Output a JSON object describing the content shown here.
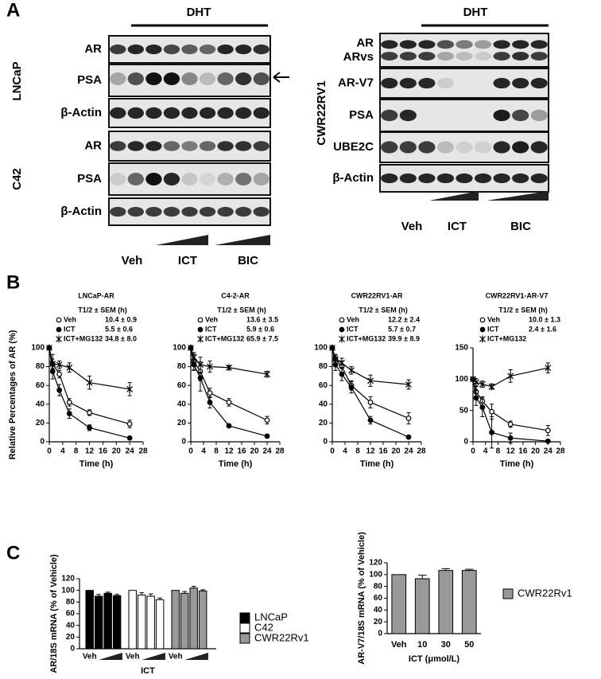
{
  "figure": {
    "panels": [
      "A",
      "B",
      "C"
    ]
  },
  "blots": [
    {
      "treatment": "DHT",
      "cell_lines": [
        "LNCaP",
        "C42"
      ],
      "rows": [
        "AR",
        "PSA",
        "β-Actin",
        "AR",
        "PSA",
        "β-Actin"
      ],
      "lanes": [
        "Veh",
        "ICT",
        "BIC"
      ]
    },
    {
      "treatment": "DHT",
      "cell_lines": [
        "CWR22RV1"
      ],
      "rows": [
        "AR",
        "ARvs",
        "AR-V7",
        "PSA",
        "UBE2C",
        "β-Actin"
      ],
      "lanes": [
        "Veh",
        "ICT",
        "BIC"
      ]
    }
  ],
  "chart_data": [
    {
      "type": "line",
      "title": "LNCaP-AR",
      "legend_header": "T1/2 ± SEM (h)",
      "ylabel": "Relative Percentages of AR (%)",
      "xlabel": "Time (h)",
      "x": [
        0,
        1,
        3,
        6,
        12,
        24
      ],
      "xlim": [
        0,
        28
      ],
      "xticks": [
        0,
        4,
        8,
        12,
        16,
        20,
        24,
        28
      ],
      "ylim": [
        0,
        100
      ],
      "yticks": [
        0,
        20,
        40,
        60,
        80,
        100
      ],
      "series": [
        {
          "name": "Veh",
          "half_life": "10.4 ± 0.9",
          "marker": "open-circle",
          "color": "#000000",
          "values": [
            100,
            83,
            72,
            42,
            31,
            19
          ],
          "errors": [
            0,
            10,
            4,
            4,
            3,
            4
          ]
        },
        {
          "name": "ICT",
          "half_life": "5.5 ± 0.6",
          "marker": "filled-circle",
          "color": "#000000",
          "values": [
            100,
            75,
            55,
            30,
            15,
            4
          ],
          "errors": [
            0,
            8,
            6,
            5,
            3,
            1
          ]
        },
        {
          "name": "ICT+MG132",
          "half_life": "34.8 ± 8.0",
          "marker": "asterisk",
          "color": "#000000",
          "values": [
            100,
            83,
            82,
            79,
            63,
            56
          ],
          "errors": [
            0,
            5,
            4,
            5,
            7,
            7
          ]
        }
      ]
    },
    {
      "type": "line",
      "title": "C4-2-AR",
      "legend_header": "T1/2 ± SEM (h)",
      "xlabel": "Time (h)",
      "x": [
        0,
        1,
        3,
        6,
        12,
        24
      ],
      "xlim": [
        0,
        28
      ],
      "xticks": [
        0,
        4,
        8,
        12,
        16,
        20,
        24,
        28
      ],
      "ylim": [
        0,
        100
      ],
      "yticks": [
        0,
        20,
        40,
        60,
        80,
        100
      ],
      "series": [
        {
          "name": "Veh",
          "half_life": "13.6 ± 3.5",
          "marker": "open-circle",
          "color": "#000000",
          "values": [
            100,
            85,
            75,
            52,
            42,
            23
          ],
          "errors": [
            0,
            8,
            10,
            5,
            4,
            4
          ]
        },
        {
          "name": "ICT",
          "half_life": "5.9 ± 0.6",
          "marker": "filled-circle",
          "color": "#000000",
          "values": [
            100,
            82,
            68,
            42,
            17,
            6
          ],
          "errors": [
            0,
            6,
            14,
            6,
            1,
            1
          ]
        },
        {
          "name": "ICT+MG132",
          "half_life": "65.9 ± 7.5",
          "marker": "asterisk",
          "color": "#000000",
          "values": [
            100,
            90,
            82,
            80,
            79,
            72
          ],
          "errors": [
            0,
            5,
            8,
            6,
            2,
            3
          ]
        }
      ]
    },
    {
      "type": "line",
      "title": "CWR22RV1-AR",
      "legend_header": "T1/2 ± SEM (h)",
      "xlabel": "Time (h)",
      "x": [
        0,
        1,
        3,
        6,
        12,
        24
      ],
      "xlim": [
        0,
        28
      ],
      "xticks": [
        0,
        4,
        8,
        12,
        16,
        20,
        24,
        28
      ],
      "ylim": [
        0,
        100
      ],
      "yticks": [
        0,
        20,
        40,
        60,
        80,
        100
      ],
      "series": [
        {
          "name": "Veh",
          "half_life": "12.2 ± 2.4",
          "marker": "open-circle",
          "color": "#000000",
          "values": [
            100,
            88,
            80,
            60,
            42,
            25
          ],
          "errors": [
            0,
            5,
            6,
            5,
            6,
            6
          ]
        },
        {
          "name": "ICT",
          "half_life": "5.7 ± 0.7",
          "marker": "filled-circle",
          "color": "#000000",
          "values": [
            100,
            82,
            72,
            58,
            23,
            5
          ],
          "errors": [
            0,
            6,
            7,
            6,
            4,
            1
          ]
        },
        {
          "name": "ICT+MG132",
          "half_life": "39.9 ± 8.9",
          "marker": "asterisk",
          "color": "#000000",
          "values": [
            100,
            88,
            84,
            76,
            65,
            61
          ],
          "errors": [
            0,
            4,
            5,
            4,
            6,
            5
          ]
        }
      ]
    },
    {
      "type": "line",
      "title": "CWR22RV1-AR-V7",
      "legend_header": "T1/2 ± SEM (h)",
      "xlabel": "Time (h)",
      "x": [
        0,
        1,
        3,
        6,
        12,
        24
      ],
      "xlim": [
        0,
        28
      ],
      "xticks": [
        0,
        4,
        8,
        12,
        16,
        20,
        24,
        28
      ],
      "ylim": [
        0,
        150
      ],
      "yticks": [
        0,
        50,
        100,
        150
      ],
      "series": [
        {
          "name": "Veh",
          "half_life": "10.0 ± 1.3",
          "marker": "open-circle",
          "color": "#000000",
          "values": [
            100,
            80,
            65,
            48,
            28,
            18
          ],
          "errors": [
            0,
            8,
            7,
            12,
            5,
            8
          ]
        },
        {
          "name": "ICT",
          "half_life": "2.4 ± 1.6",
          "marker": "filled-circle",
          "color": "#000000",
          "values": [
            100,
            70,
            55,
            15,
            6,
            1
          ],
          "errors": [
            0,
            12,
            15,
            25,
            8,
            1
          ]
        },
        {
          "name": "ICT+MG132",
          "half_life": null,
          "marker": "asterisk",
          "color": "#000000",
          "values": [
            100,
            95,
            92,
            88,
            105,
            118
          ],
          "errors": [
            0,
            6,
            5,
            4,
            10,
            8
          ]
        }
      ]
    },
    {
      "type": "bar",
      "ylabel": "AR/18S mRNA (% of Vehicle)",
      "xlabel": "ICT",
      "categories": [
        "Veh",
        null,
        null,
        null
      ],
      "ylim": [
        0,
        120
      ],
      "yticks": [
        0,
        20,
        40,
        60,
        80,
        100,
        120
      ],
      "series": [
        {
          "name": "LNCaP",
          "color": "#000000",
          "values": [
            100,
            90,
            95,
            91
          ],
          "errors": [
            0,
            3,
            2,
            2
          ]
        },
        {
          "name": "C42",
          "color": "#ffffff",
          "values": [
            100,
            92,
            90,
            84
          ],
          "errors": [
            0,
            4,
            4,
            3
          ]
        },
        {
          "name": "CWR22Rv1",
          "color": "#999999",
          "values": [
            100,
            95,
            104,
            99
          ],
          "errors": [
            0,
            3,
            3,
            2
          ]
        }
      ]
    },
    {
      "type": "bar",
      "ylabel": "AR-V7/18S mRNA (% of Vehicle)",
      "xlabel": "ICT (μmol/L)",
      "categories": [
        "Veh",
        "10",
        "30",
        "50"
      ],
      "ylim": [
        0,
        120
      ],
      "yticks": [
        0,
        20,
        40,
        60,
        80,
        100,
        120
      ],
      "series": [
        {
          "name": "CWR22Rv1",
          "color": "#999999",
          "values": [
            100,
            93,
            107,
            107
          ],
          "errors": [
            0,
            6,
            3,
            2
          ]
        }
      ]
    }
  ]
}
